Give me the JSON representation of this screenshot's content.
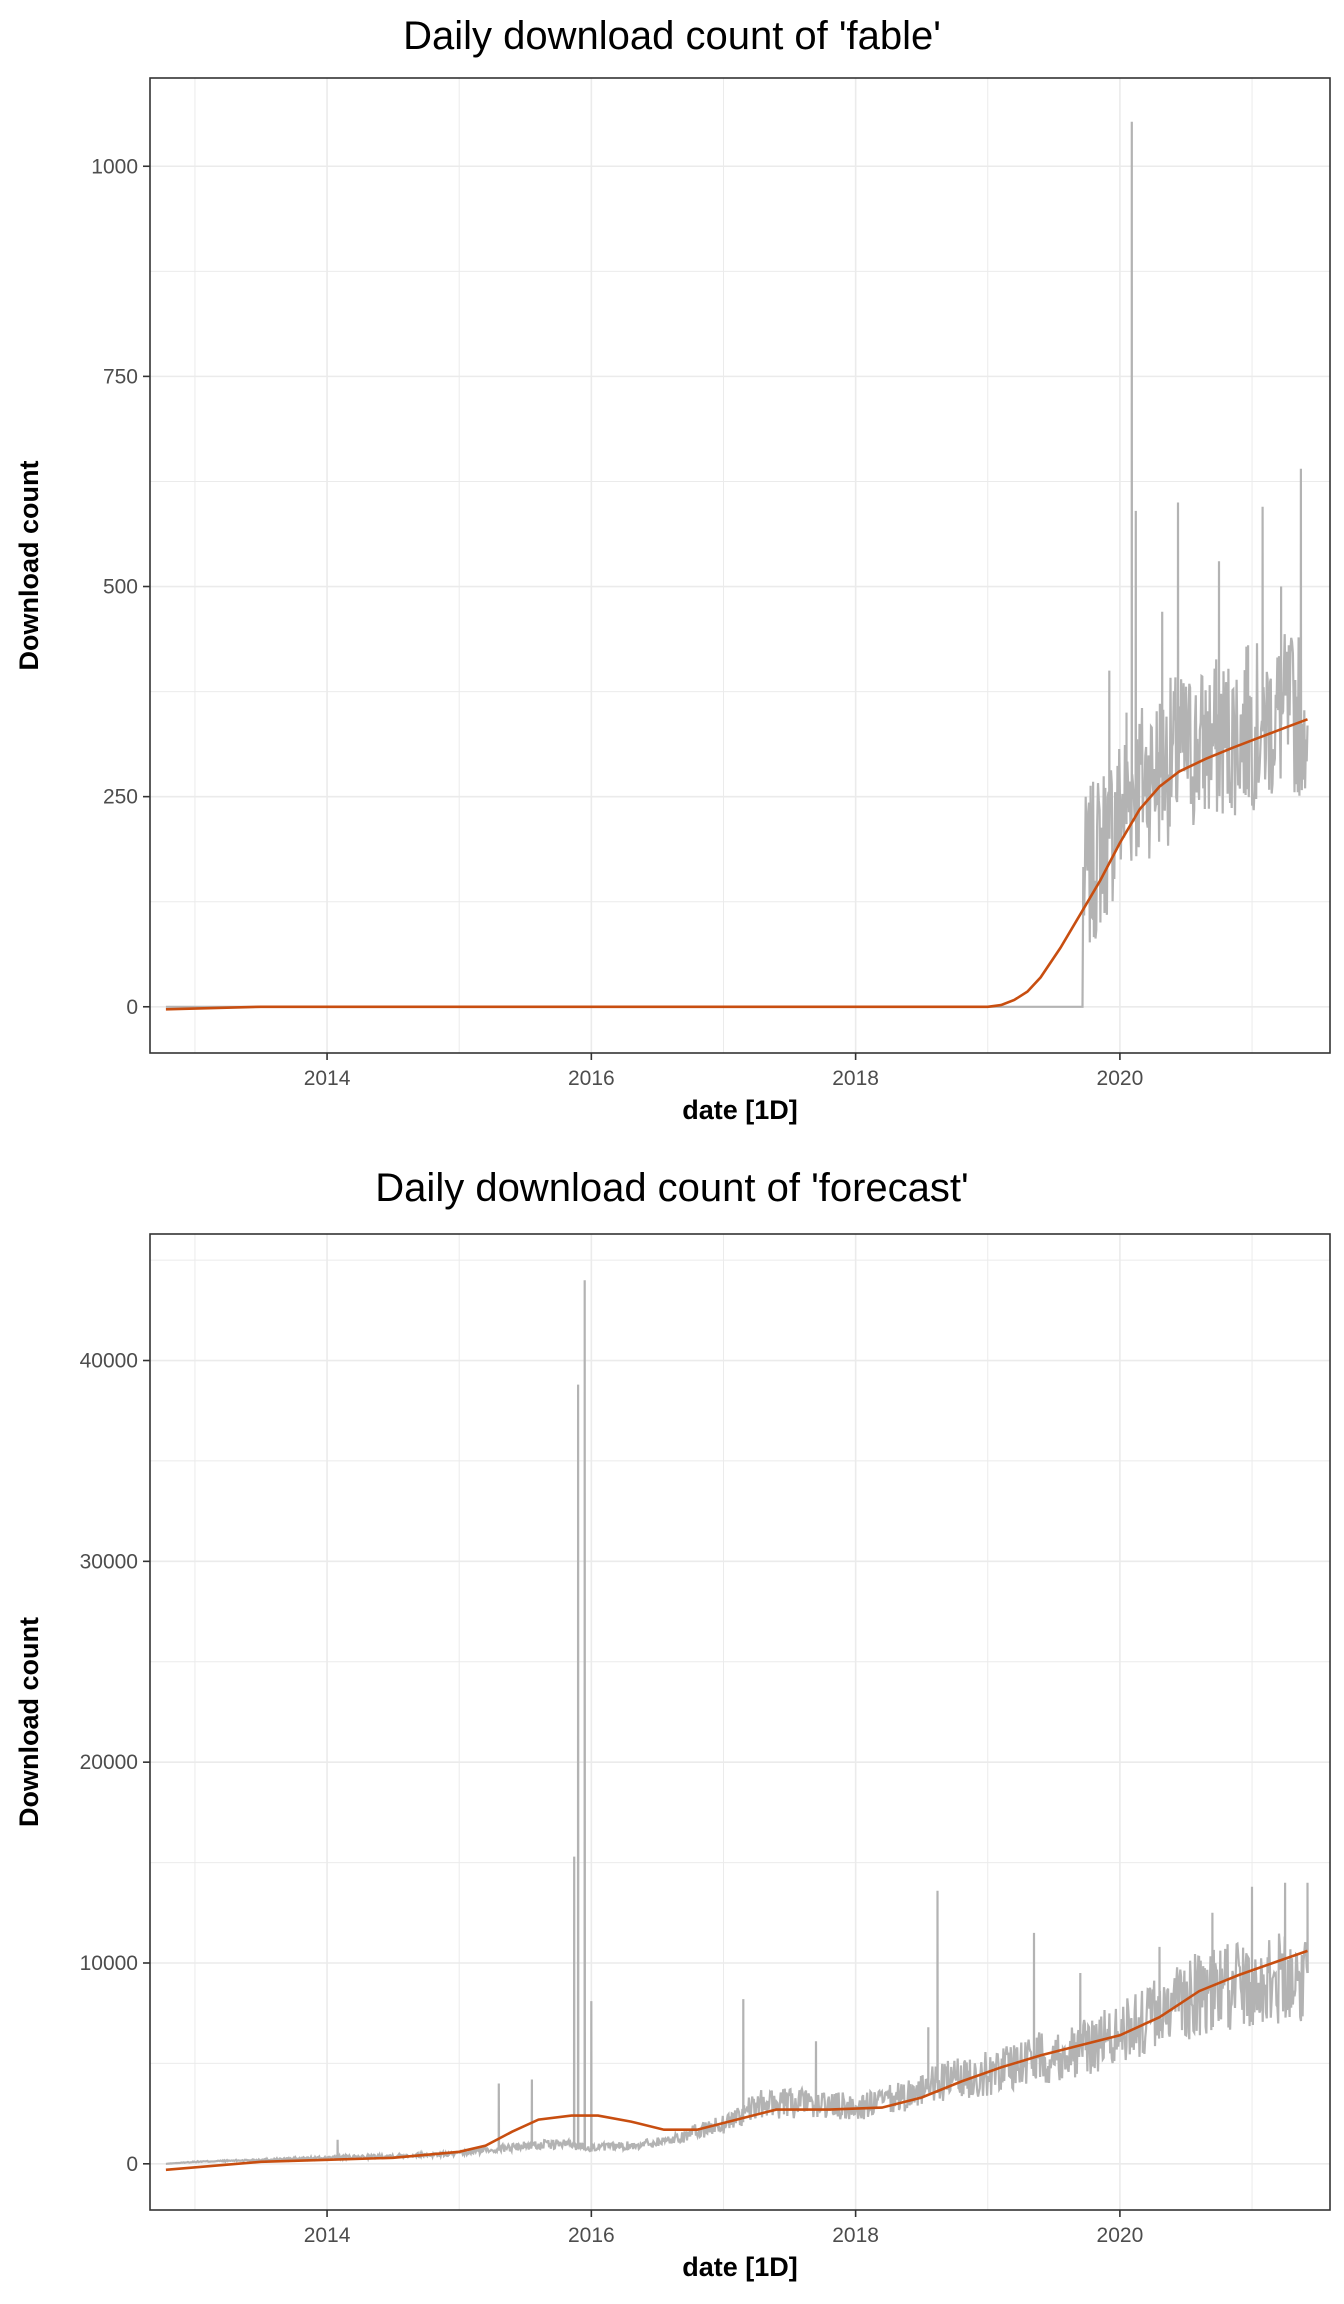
{
  "colors": {
    "raw_series": "#b3b3b3",
    "trend_series": "#c84e10",
    "grid": "#ebebeb",
    "panel_border": "#333333"
  },
  "chart_data": [
    {
      "type": "line",
      "title": "Daily download count of 'fable'",
      "xlabel": "date [1D]",
      "ylabel": "Download count",
      "x_ticks": [
        "2014",
        "2016",
        "2018",
        "2020"
      ],
      "y_ticks": [
        "0",
        "250",
        "500",
        "750",
        "1000"
      ],
      "xlim": [
        2012.66,
        2021.59
      ],
      "ylim": [
        -55,
        1105
      ],
      "grid": true,
      "legend": "none",
      "series": [
        {
          "values_x": [
            2012.78,
            2013.5,
            2014.5,
            2015.5,
            2016.5,
            2017.5,
            2018.5,
            2019.0,
            2019.2,
            2019.35,
            2019.5,
            2019.65,
            2019.8,
            2019.95,
            2020.1,
            2020.25,
            2020.45,
            2020.7,
            2020.95,
            2021.2,
            2021.42
          ],
          "values_y": [
            -3,
            0,
            0,
            0,
            0,
            0,
            0,
            0,
            5,
            30,
            70,
            115,
            160,
            210,
            250,
            270,
            290,
            305,
            320,
            335,
            340
          ],
          "spikes": [
            [
              2019.92,
              400
            ],
            [
              2020.05,
              350
            ],
            [
              2020.09,
              1053
            ],
            [
              2020.12,
              590
            ],
            [
              2020.32,
              470
            ],
            [
              2020.44,
              600
            ],
            [
              2020.75,
              530
            ],
            [
              2020.97,
              430
            ],
            [
              2021.08,
              595
            ],
            [
              2021.22,
              500
            ],
            [
              2021.37,
              640
            ]
          ]
        }
      ],
      "trend": {
        "x": [
          2012.78,
          2013.5,
          2014.5,
          2015.5,
          2016.5,
          2017.5,
          2018.5,
          2019.0,
          2019.1,
          2019.2,
          2019.3,
          2019.4,
          2019.55,
          2019.7,
          2019.85,
          2020.0,
          2020.15,
          2020.3,
          2020.45,
          2020.65,
          2020.85,
          2021.05,
          2021.25,
          2021.42
        ],
        "y": [
          -3,
          0,
          0,
          0,
          0,
          0,
          0,
          0,
          2,
          8,
          18,
          35,
          70,
          110,
          150,
          195,
          235,
          262,
          280,
          295,
          308,
          320,
          332,
          342
        ]
      }
    },
    {
      "type": "line",
      "title": "Daily download count of 'forecast'",
      "xlabel": "date [1D]",
      "ylabel": "Download count",
      "x_ticks": [
        "2014",
        "2016",
        "2018",
        "2020"
      ],
      "y_ticks": [
        "0",
        "10000",
        "20000",
        "30000",
        "40000"
      ],
      "xlim": [
        2012.66,
        2021.59
      ],
      "ylim": [
        -2300,
        46300
      ],
      "grid": true,
      "legend": "none",
      "series": [
        {
          "values_x": [
            2012.78,
            2013.0,
            2013.5,
            2014.0,
            2014.5,
            2015.0,
            2015.2,
            2015.5,
            2015.8,
            2016.0,
            2016.3,
            2016.6,
            2017.0,
            2017.3,
            2017.6,
            2018.0,
            2018.3,
            2018.6,
            2019.0,
            2019.3,
            2019.6,
            2020.0,
            2020.3,
            2020.6,
            2021.0,
            2021.42
          ],
          "values_y": [
            0,
            100,
            200,
            300,
            400,
            500,
            700,
            900,
            1000,
            800,
            900,
            1200,
            2000,
            3000,
            3000,
            2800,
            3200,
            4000,
            4500,
            5200,
            5500,
            6500,
            7500,
            8500,
            9000,
            9500
          ],
          "spikes": [
            [
              2014.08,
              1200
            ],
            [
              2015.3,
              4000
            ],
            [
              2015.55,
              4200
            ],
            [
              2015.87,
              15300
            ],
            [
              2015.9,
              38800
            ],
            [
              2015.95,
              44000
            ],
            [
              2016.0,
              8100
            ],
            [
              2017.15,
              8200
            ],
            [
              2017.7,
              6100
            ],
            [
              2018.55,
              6800
            ],
            [
              2018.62,
              13600
            ],
            [
              2019.35,
              11500
            ],
            [
              2019.7,
              9500
            ],
            [
              2020.3,
              10800
            ],
            [
              2020.7,
              12500
            ],
            [
              2021.0,
              13800
            ],
            [
              2021.25,
              14000
            ],
            [
              2021.42,
              14000
            ]
          ]
        }
      ],
      "trend": {
        "x": [
          2012.78,
          2013.5,
          2014.0,
          2014.5,
          2015.0,
          2015.2,
          2015.4,
          2015.6,
          2015.85,
          2016.05,
          2016.3,
          2016.55,
          2016.8,
          2017.1,
          2017.4,
          2017.8,
          2018.2,
          2018.5,
          2018.8,
          2019.1,
          2019.4,
          2019.7,
          2020.0,
          2020.3,
          2020.6,
          2020.9,
          2021.2,
          2021.42
        ],
        "y": [
          -300,
          100,
          200,
          300,
          600,
          900,
          1600,
          2200,
          2400,
          2400,
          2100,
          1700,
          1700,
          2200,
          2700,
          2700,
          2800,
          3300,
          4100,
          4800,
          5400,
          5900,
          6400,
          7300,
          8600,
          9400,
          10100,
          10600
        ]
      }
    }
  ]
}
